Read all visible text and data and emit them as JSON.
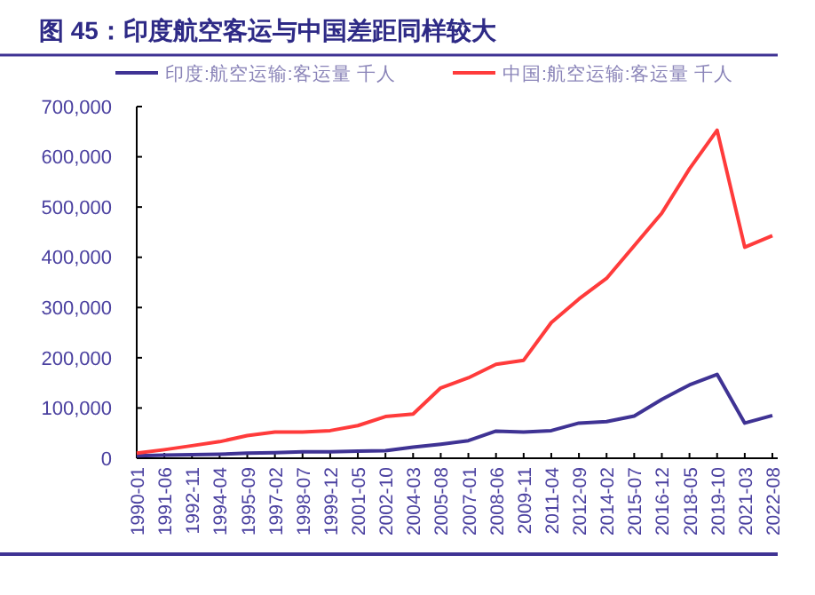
{
  "chart_data": {
    "type": "line",
    "title": "图 45：印度航空客运与中国差距同样较大",
    "categories": [
      "1990-01",
      "1991-06",
      "1992-11",
      "1994-04",
      "1995-09",
      "1997-02",
      "1998-07",
      "1999-12",
      "2001-05",
      "2002-10",
      "2004-03",
      "2005-08",
      "2007-01",
      "2008-06",
      "2009-11",
      "2011-04",
      "2012-09",
      "2014-02",
      "2015-07",
      "2016-12",
      "2018-05",
      "2019-10",
      "2021-03",
      "2022-08"
    ],
    "series": [
      {
        "name": "印度:航空运输:客运量 千人",
        "color": "#3f3394",
        "values": [
          5000,
          6000,
          7000,
          8000,
          10000,
          11000,
          13000,
          13000,
          14000,
          15000,
          22000,
          28000,
          35000,
          54000,
          52000,
          55000,
          70000,
          73000,
          84000,
          117000,
          146000,
          167000,
          70000,
          85000
        ]
      },
      {
        "name": "中国:航空运输:客运量 千人",
        "color": "#ff3b3b",
        "values": [
          10000,
          17000,
          25000,
          33000,
          45000,
          52000,
          52000,
          55000,
          65000,
          83000,
          88000,
          140000,
          160000,
          187000,
          195000,
          270000,
          317000,
          358000,
          423000,
          488000,
          576000,
          653000,
          420000,
          443000
        ]
      }
    ],
    "ylim": [
      0,
      700000
    ],
    "yticks": [
      {
        "value": 0,
        "label": "0"
      },
      {
        "value": 100000,
        "label": "100,000"
      },
      {
        "value": 200000,
        "label": "200,000"
      },
      {
        "value": 300000,
        "label": "300,000"
      },
      {
        "value": 400000,
        "label": "400,000"
      },
      {
        "value": 500000,
        "label": "500,000"
      },
      {
        "value": 600000,
        "label": "600,000"
      },
      {
        "value": 700000,
        "label": "700,000"
      }
    ],
    "legend": "top",
    "grid": false,
    "marker": "none",
    "line_style": "solid"
  }
}
